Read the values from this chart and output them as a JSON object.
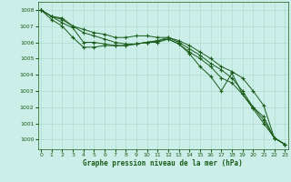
{
  "bg_color": "#cceee8",
  "grid_color": "#aaddcc",
  "line_color": "#1a5c1a",
  "xlabel": "Graphe pression niveau de la mer (hPa)",
  "xlabel_color": "#1a5c1a",
  "ylim": [
    999.4,
    1008.5
  ],
  "xlim": [
    -0.3,
    23.3
  ],
  "yticks": [
    1000,
    1001,
    1002,
    1003,
    1004,
    1005,
    1006,
    1007,
    1008
  ],
  "xticks": [
    0,
    1,
    2,
    3,
    4,
    5,
    6,
    7,
    8,
    9,
    10,
    11,
    12,
    13,
    14,
    15,
    16,
    17,
    18,
    19,
    20,
    21,
    22,
    23
  ],
  "series": [
    [
      1008.0,
      1007.6,
      1007.5,
      1007.0,
      1006.8,
      1006.6,
      1006.5,
      1006.3,
      1006.3,
      1006.4,
      1006.4,
      1006.3,
      1006.3,
      1006.1,
      1005.8,
      1005.4,
      1005.0,
      1004.5,
      1004.2,
      1003.8,
      1003.0,
      1002.1,
      1000.1,
      999.7
    ],
    [
      1008.0,
      1007.6,
      1007.4,
      1007.0,
      1006.6,
      1006.4,
      1006.2,
      1006.0,
      1005.9,
      1005.9,
      1006.0,
      1006.1,
      1006.3,
      1006.0,
      1005.6,
      1005.2,
      1004.7,
      1004.3,
      1003.8,
      1003.0,
      1002.0,
      1001.2,
      1000.1,
      999.7
    ],
    [
      1008.0,
      1007.6,
      1007.2,
      1006.9,
      1006.0,
      1006.0,
      1005.9,
      1005.8,
      1005.8,
      1005.9,
      1006.0,
      1006.1,
      1006.2,
      1005.9,
      1005.4,
      1005.0,
      1004.5,
      1003.8,
      1003.5,
      1002.8,
      1002.0,
      1001.4,
      1000.1,
      999.7
    ],
    [
      1008.0,
      1007.4,
      1007.0,
      1006.3,
      1005.7,
      1005.7,
      1005.8,
      1005.8,
      1005.8,
      1005.9,
      1006.0,
      1006.0,
      1006.2,
      1005.9,
      1005.3,
      1004.5,
      1003.9,
      1003.0,
      1004.1,
      1002.8,
      1001.9,
      1001.0,
      1000.1,
      999.7
    ]
  ]
}
